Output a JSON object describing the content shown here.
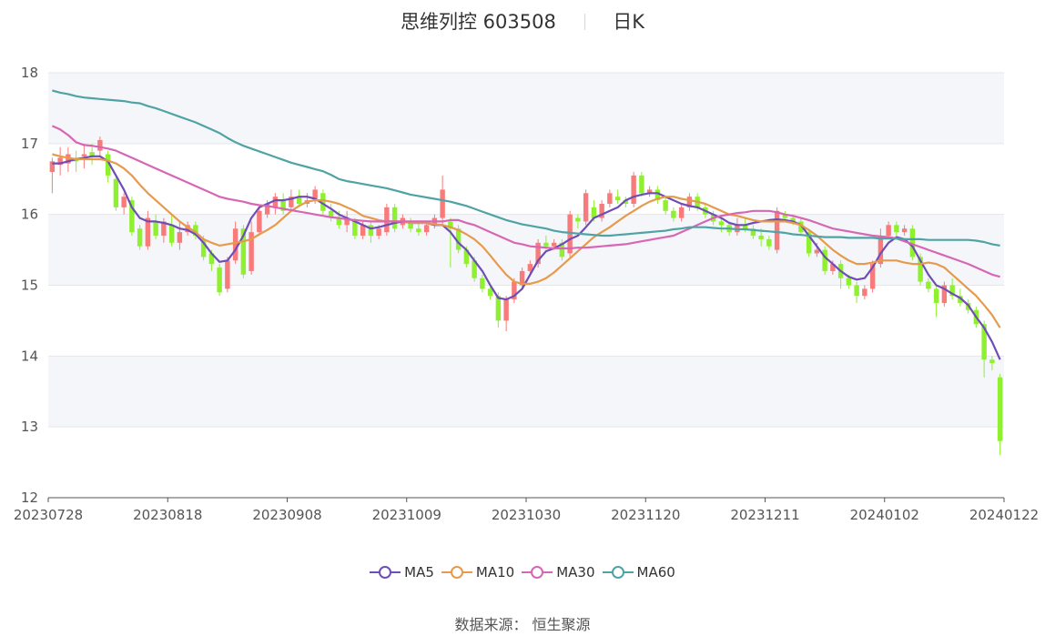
{
  "header": {
    "stock_name": "思维列控",
    "stock_code": "603508",
    "period_label": "日K"
  },
  "footer": {
    "source_label": "数据来源：",
    "source_name": "恒生聚源"
  },
  "colors": {
    "up": "#f77b7b",
    "down": "#8ef02f",
    "ma5": "#6f4db6",
    "ma10": "#e69a4b",
    "ma30": "#d766b4",
    "ma60": "#4fa3a5",
    "band": "#f5f6fa",
    "grid": "#e3e6ee"
  },
  "chart_data": {
    "type": "candlestick",
    "ylim": [
      12,
      18
    ],
    "yticks": [
      12,
      13,
      14,
      15,
      16,
      17,
      18
    ],
    "x_tick_labels": [
      "20230728",
      "20230818",
      "20230908",
      "20231009",
      "20231030",
      "20231120",
      "20231211",
      "20240102",
      "20240122"
    ],
    "grid": true,
    "legend_position": "bottom",
    "candles": [
      [
        16.6,
        16.75,
        16.3,
        16.8
      ],
      [
        16.7,
        16.8,
        16.55,
        16.95
      ],
      [
        16.72,
        16.85,
        16.6,
        16.95
      ],
      [
        16.8,
        16.75,
        16.6,
        16.9
      ],
      [
        16.82,
        16.85,
        16.65,
        17.0
      ],
      [
        16.88,
        16.82,
        16.7,
        17.0
      ],
      [
        16.9,
        17.05,
        16.8,
        17.1
      ],
      [
        16.85,
        16.55,
        16.45,
        16.9
      ],
      [
        16.5,
        16.1,
        16.05,
        16.55
      ],
      [
        16.1,
        16.25,
        16.0,
        16.3
      ],
      [
        16.2,
        15.75,
        15.7,
        16.25
      ],
      [
        15.8,
        15.55,
        15.5,
        15.85
      ],
      [
        15.55,
        15.95,
        15.5,
        16.05
      ],
      [
        15.9,
        15.7,
        15.65,
        16.0
      ],
      [
        15.7,
        15.9,
        15.6,
        15.95
      ],
      [
        15.85,
        15.6,
        15.55,
        16.0
      ],
      [
        15.6,
        15.75,
        15.5,
        15.9
      ],
      [
        15.75,
        15.85,
        15.7,
        15.9
      ],
      [
        15.85,
        15.7,
        15.65,
        15.9
      ],
      [
        15.65,
        15.4,
        15.35,
        15.7
      ],
      [
        15.45,
        15.3,
        15.2,
        15.5
      ],
      [
        15.25,
        14.9,
        14.85,
        15.3
      ],
      [
        14.95,
        15.35,
        14.9,
        15.4
      ],
      [
        15.35,
        15.8,
        15.3,
        15.9
      ],
      [
        15.8,
        15.15,
        15.1,
        15.85
      ],
      [
        15.2,
        15.75,
        15.15,
        15.9
      ],
      [
        15.75,
        16.05,
        15.7,
        16.1
      ],
      [
        16.0,
        16.15,
        15.95,
        16.2
      ],
      [
        16.1,
        16.25,
        16.0,
        16.3
      ],
      [
        16.2,
        16.05,
        16.0,
        16.3
      ],
      [
        16.1,
        16.25,
        16.05,
        16.35
      ],
      [
        16.25,
        16.15,
        16.1,
        16.35
      ],
      [
        16.15,
        16.2,
        16.1,
        16.3
      ],
      [
        16.22,
        16.35,
        16.15,
        16.4
      ],
      [
        16.3,
        16.05,
        16.0,
        16.35
      ],
      [
        16.05,
        15.95,
        15.9,
        16.15
      ],
      [
        15.95,
        15.85,
        15.8,
        16.05
      ],
      [
        15.85,
        15.95,
        15.75,
        16.05
      ],
      [
        15.9,
        15.7,
        15.65,
        15.95
      ],
      [
        15.7,
        15.85,
        15.65,
        15.9
      ],
      [
        15.85,
        15.7,
        15.6,
        15.9
      ],
      [
        15.7,
        15.8,
        15.65,
        15.85
      ],
      [
        15.75,
        16.1,
        15.7,
        16.15
      ],
      [
        16.1,
        15.8,
        15.75,
        16.15
      ],
      [
        15.85,
        15.95,
        15.8,
        16.0
      ],
      [
        15.9,
        15.8,
        15.75,
        15.95
      ],
      [
        15.8,
        15.75,
        15.7,
        15.9
      ],
      [
        15.75,
        15.85,
        15.7,
        15.9
      ],
      [
        15.85,
        15.95,
        15.8,
        16.0
      ],
      [
        15.95,
        16.35,
        15.85,
        16.55
      ],
      [
        15.9,
        15.8,
        15.25,
        15.95
      ],
      [
        15.8,
        15.5,
        15.45,
        15.85
      ],
      [
        15.5,
        15.3,
        15.25,
        15.55
      ],
      [
        15.35,
        15.1,
        15.05,
        15.4
      ],
      [
        15.1,
        14.95,
        14.9,
        15.15
      ],
      [
        14.95,
        14.85,
        14.8,
        15.0
      ],
      [
        14.85,
        14.5,
        14.4,
        14.9
      ],
      [
        14.5,
        14.8,
        14.35,
        14.85
      ],
      [
        14.8,
        15.05,
        14.75,
        15.1
      ],
      [
        15.0,
        15.2,
        14.95,
        15.25
      ],
      [
        15.2,
        15.3,
        15.15,
        15.35
      ],
      [
        15.3,
        15.6,
        15.25,
        15.65
      ],
      [
        15.6,
        15.55,
        15.5,
        15.7
      ],
      [
        15.55,
        15.6,
        15.5,
        15.65
      ],
      [
        15.6,
        15.4,
        15.35,
        15.65
      ],
      [
        15.45,
        16.0,
        15.4,
        16.05
      ],
      [
        15.95,
        15.9,
        15.8,
        16.0
      ],
      [
        15.9,
        16.3,
        15.85,
        16.35
      ],
      [
        16.1,
        15.95,
        15.9,
        16.2
      ],
      [
        15.95,
        16.15,
        15.9,
        16.2
      ],
      [
        16.15,
        16.3,
        16.1,
        16.35
      ],
      [
        16.25,
        16.2,
        16.15,
        16.35
      ],
      [
        16.2,
        16.15,
        16.1,
        16.25
      ],
      [
        16.15,
        16.55,
        16.1,
        16.6
      ],
      [
        16.55,
        16.3,
        16.25,
        16.6
      ],
      [
        16.3,
        16.35,
        16.25,
        16.4
      ],
      [
        16.35,
        16.2,
        16.15,
        16.4
      ],
      [
        16.2,
        16.05,
        16.0,
        16.25
      ],
      [
        16.05,
        15.95,
        15.9,
        16.1
      ],
      [
        15.95,
        16.1,
        15.9,
        16.15
      ],
      [
        16.1,
        16.25,
        16.05,
        16.3
      ],
      [
        16.25,
        16.1,
        16.05,
        16.3
      ],
      [
        16.1,
        16.0,
        15.95,
        16.15
      ],
      [
        16.0,
        15.9,
        15.85,
        16.05
      ],
      [
        15.9,
        15.85,
        15.75,
        15.95
      ],
      [
        15.85,
        15.75,
        15.7,
        15.9
      ],
      [
        15.75,
        15.85,
        15.7,
        15.95
      ],
      [
        15.85,
        15.8,
        15.75,
        15.95
      ],
      [
        15.8,
        15.7,
        15.65,
        15.85
      ],
      [
        15.7,
        15.65,
        15.55,
        15.8
      ],
      [
        15.65,
        15.55,
        15.5,
        15.7
      ],
      [
        15.5,
        16.05,
        15.45,
        16.1
      ],
      [
        16.0,
        15.95,
        15.9,
        16.05
      ],
      [
        15.95,
        15.9,
        15.85,
        16.0
      ],
      [
        15.9,
        15.75,
        15.7,
        15.95
      ],
      [
        15.75,
        15.45,
        15.4,
        15.8
      ],
      [
        15.45,
        15.5,
        15.4,
        15.6
      ],
      [
        15.5,
        15.2,
        15.15,
        15.55
      ],
      [
        15.2,
        15.3,
        15.15,
        15.35
      ],
      [
        15.3,
        15.1,
        14.95,
        15.35
      ],
      [
        15.1,
        15.0,
        14.95,
        15.15
      ],
      [
        15.0,
        14.85,
        14.75,
        15.05
      ],
      [
        14.85,
        14.95,
        14.8,
        15.0
      ],
      [
        14.95,
        15.3,
        14.9,
        15.35
      ],
      [
        15.3,
        15.7,
        15.25,
        15.8
      ],
      [
        15.7,
        15.85,
        15.65,
        15.9
      ],
      [
        15.85,
        15.75,
        15.7,
        15.9
      ],
      [
        15.75,
        15.8,
        15.7,
        15.85
      ],
      [
        15.8,
        15.4,
        15.35,
        15.85
      ],
      [
        15.4,
        15.05,
        15.0,
        15.45
      ],
      [
        15.05,
        14.95,
        14.9,
        15.1
      ],
      [
        14.95,
        14.75,
        14.55,
        15.0
      ],
      [
        14.75,
        15.0,
        14.7,
        15.05
      ],
      [
        15.0,
        14.85,
        14.8,
        15.1
      ],
      [
        14.85,
        14.75,
        14.7,
        14.95
      ],
      [
        14.75,
        14.65,
        14.6,
        14.8
      ],
      [
        14.65,
        14.45,
        14.4,
        14.7
      ],
      [
        14.45,
        13.95,
        13.7,
        14.5
      ],
      [
        13.95,
        13.9,
        13.8,
        14.0
      ],
      [
        13.7,
        12.8,
        12.6,
        13.75
      ]
    ],
    "series": [
      {
        "name": "MA5",
        "values": [
          16.72,
          16.72,
          16.75,
          16.78,
          16.8,
          16.82,
          16.82,
          16.75,
          16.55,
          16.35,
          16.1,
          15.95,
          15.9,
          15.9,
          15.88,
          15.85,
          15.8,
          15.78,
          15.72,
          15.6,
          15.45,
          15.33,
          15.35,
          15.5,
          15.7,
          15.95,
          16.1,
          16.15,
          16.2,
          16.2,
          16.22,
          16.25,
          16.25,
          16.22,
          16.15,
          16.08,
          16.0,
          15.95,
          15.9,
          15.85,
          15.8,
          15.82,
          15.85,
          15.88,
          15.9,
          15.88,
          15.88,
          15.88,
          15.85,
          15.85,
          15.75,
          15.6,
          15.5,
          15.35,
          15.2,
          15.0,
          14.82,
          14.8,
          14.85,
          14.95,
          15.15,
          15.35,
          15.48,
          15.52,
          15.58,
          15.65,
          15.7,
          15.82,
          15.95,
          16.0,
          16.05,
          16.1,
          16.2,
          16.25,
          16.28,
          16.3,
          16.3,
          16.25,
          16.2,
          16.15,
          16.12,
          16.1,
          16.05,
          16.0,
          15.95,
          15.88,
          15.85,
          15.85,
          15.88,
          15.9,
          15.92,
          15.93,
          15.92,
          15.9,
          15.85,
          15.7,
          15.55,
          15.4,
          15.3,
          15.2,
          15.12,
          15.08,
          15.1,
          15.25,
          15.45,
          15.6,
          15.68,
          15.65,
          15.55,
          15.35,
          15.15,
          15.0,
          14.95,
          14.88,
          14.82,
          14.72,
          14.55,
          14.4,
          14.2,
          13.95
        ]
      },
      {
        "name": "MA10",
        "values": [
          16.85,
          16.82,
          16.8,
          16.78,
          16.78,
          16.78,
          16.78,
          16.76,
          16.72,
          16.65,
          16.55,
          16.42,
          16.3,
          16.2,
          16.1,
          16.0,
          15.9,
          15.82,
          15.75,
          15.65,
          15.6,
          15.56,
          15.58,
          15.6,
          15.62,
          15.65,
          15.72,
          15.78,
          15.85,
          15.95,
          16.05,
          16.12,
          16.18,
          16.2,
          16.2,
          16.18,
          16.15,
          16.1,
          16.05,
          15.98,
          15.95,
          15.92,
          15.9,
          15.9,
          15.9,
          15.88,
          15.88,
          15.88,
          15.86,
          15.85,
          15.82,
          15.78,
          15.72,
          15.65,
          15.55,
          15.42,
          15.28,
          15.15,
          15.05,
          15.02,
          15.02,
          15.05,
          15.1,
          15.18,
          15.28,
          15.38,
          15.48,
          15.58,
          15.68,
          15.75,
          15.82,
          15.9,
          15.98,
          16.05,
          16.12,
          16.18,
          16.22,
          16.25,
          16.25,
          16.22,
          16.2,
          16.18,
          16.15,
          16.1,
          16.05,
          16.0,
          15.98,
          15.95,
          15.92,
          15.9,
          15.9,
          15.9,
          15.9,
          15.88,
          15.85,
          15.78,
          15.7,
          15.6,
          15.5,
          15.42,
          15.35,
          15.3,
          15.3,
          15.32,
          15.35,
          15.35,
          15.35,
          15.32,
          15.3,
          15.3,
          15.32,
          15.3,
          15.25,
          15.15,
          15.05,
          14.95,
          14.85,
          14.72,
          14.58,
          14.4
        ]
      },
      {
        "name": "MA30",
        "values": [
          17.25,
          17.2,
          17.12,
          17.02,
          16.98,
          16.97,
          16.95,
          16.93,
          16.9,
          16.85,
          16.8,
          16.75,
          16.7,
          16.65,
          16.6,
          16.55,
          16.5,
          16.45,
          16.4,
          16.35,
          16.3,
          16.25,
          16.22,
          16.2,
          16.18,
          16.15,
          16.13,
          16.12,
          16.1,
          16.08,
          16.06,
          16.04,
          16.02,
          16.0,
          15.98,
          15.96,
          15.95,
          15.93,
          15.92,
          15.91,
          15.9,
          15.9,
          15.9,
          15.9,
          15.9,
          15.9,
          15.9,
          15.9,
          15.9,
          15.9,
          15.92,
          15.92,
          15.88,
          15.85,
          15.8,
          15.75,
          15.7,
          15.65,
          15.6,
          15.58,
          15.55,
          15.54,
          15.53,
          15.52,
          15.52,
          15.52,
          15.53,
          15.53,
          15.54,
          15.55,
          15.56,
          15.57,
          15.58,
          15.6,
          15.62,
          15.64,
          15.66,
          15.68,
          15.7,
          15.75,
          15.8,
          15.85,
          15.9,
          15.95,
          15.98,
          16.0,
          16.02,
          16.03,
          16.05,
          16.05,
          16.05,
          16.03,
          16.0,
          15.98,
          15.95,
          15.92,
          15.88,
          15.84,
          15.8,
          15.78,
          15.76,
          15.74,
          15.72,
          15.7,
          15.69,
          15.68,
          15.66,
          15.62,
          15.58,
          15.54,
          15.5,
          15.46,
          15.42,
          15.38,
          15.34,
          15.3,
          15.25,
          15.2,
          15.15,
          15.12
        ]
      },
      {
        "name": "MA60",
        "values": [
          17.75,
          17.72,
          17.7,
          17.67,
          17.65,
          17.64,
          17.63,
          17.62,
          17.61,
          17.6,
          17.58,
          17.57,
          17.53,
          17.5,
          17.46,
          17.42,
          17.38,
          17.34,
          17.3,
          17.25,
          17.2,
          17.15,
          17.08,
          17.02,
          16.97,
          16.93,
          16.89,
          16.85,
          16.81,
          16.77,
          16.73,
          16.7,
          16.67,
          16.64,
          16.61,
          16.56,
          16.5,
          16.47,
          16.45,
          16.43,
          16.41,
          16.39,
          16.37,
          16.34,
          16.31,
          16.28,
          16.26,
          16.24,
          16.22,
          16.2,
          16.18,
          16.15,
          16.12,
          16.08,
          16.04,
          16.0,
          15.96,
          15.92,
          15.89,
          15.86,
          15.84,
          15.82,
          15.8,
          15.77,
          15.75,
          15.74,
          15.73,
          15.72,
          15.71,
          15.7,
          15.7,
          15.71,
          15.72,
          15.73,
          15.74,
          15.75,
          15.76,
          15.77,
          15.79,
          15.8,
          15.82,
          15.82,
          15.82,
          15.81,
          15.8,
          15.8,
          15.79,
          15.79,
          15.78,
          15.77,
          15.76,
          15.75,
          15.74,
          15.72,
          15.71,
          15.7,
          15.69,
          15.68,
          15.68,
          15.68,
          15.67,
          15.67,
          15.67,
          15.67,
          15.66,
          15.66,
          15.66,
          15.65,
          15.65,
          15.65,
          15.64,
          15.64,
          15.64,
          15.64,
          15.64,
          15.64,
          15.63,
          15.61,
          15.58,
          15.56
        ]
      }
    ]
  }
}
